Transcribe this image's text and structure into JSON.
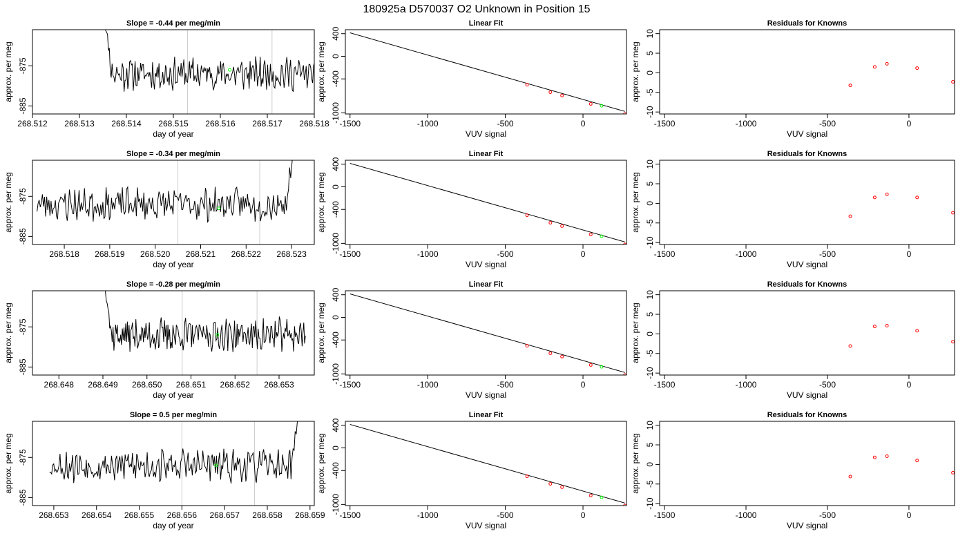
{
  "suptitle": "180925a     D570037   O2 Unknown in Position  15",
  "colors": {
    "series": "#000000",
    "unknown": "#00ff00",
    "known": "#ff0000",
    "marker_line": "#cccccc"
  },
  "chart_data": [
    {
      "type": "line",
      "panel": "timeseries",
      "row": 0,
      "title": "Slope =  -0.44  per meg/min",
      "xlabel": "day of year",
      "ylabel": "approx. per meg",
      "xlim": [
        268.512,
        268.518
      ],
      "ylim": [
        -887,
        -866
      ],
      "xticks": [
        268.512,
        268.513,
        268.514,
        268.515,
        268.516,
        268.517,
        268.518
      ],
      "xtick_labels": [
        "268.512",
        "268.513",
        "268.514",
        "268.515",
        "268.516",
        "268.517",
        "268.518"
      ],
      "yticks": [
        -875,
        -885
      ],
      "ytick_labels": [
        "-875",
        "-885"
      ],
      "vlines": [
        268.5153,
        268.5171
      ],
      "trace_start": 268.5135,
      "trace_end": 268.5182,
      "spike_start": -860,
      "seed": 11,
      "unknown_point": {
        "x": 268.5162,
        "y": -876
      }
    },
    {
      "type": "scatter",
      "panel": "fit",
      "row": 0,
      "title": "Linear Fit",
      "xlabel": "VUV signal",
      "ylabel": "approx. per meg",
      "xlim": [
        -1530,
        280
      ],
      "ylim": [
        -1020,
        470
      ],
      "xticks": [
        -1500,
        -1000,
        -500,
        0
      ],
      "xtick_labels": [
        "-1500",
        "-1000",
        "-500",
        "0"
      ],
      "yticks": [
        400,
        0,
        -400,
        -1000
      ],
      "ytick_labels": [
        "400",
        "0",
        "-400",
        "-1000"
      ],
      "line": {
        "x": [
          -1500,
          270
        ],
        "y": [
          415,
          -975
        ]
      },
      "knowns": {
        "x": [
          -360,
          -210,
          -135,
          50,
          270
        ],
        "y": [
          -502,
          -635,
          -694,
          -842,
          -1020
        ]
      },
      "unknown": {
        "x": 120,
        "y": -875
      }
    },
    {
      "type": "scatter",
      "panel": "residuals",
      "row": 0,
      "title": "Residuals for Knowns",
      "xlabel": "VUV signal",
      "ylabel": "approx. per meg",
      "xlim": [
        -1530,
        280
      ],
      "ylim": [
        -10.5,
        11
      ],
      "xticks": [
        -1500,
        -1000,
        -500,
        0
      ],
      "xtick_labels": [
        "-1500",
        "-1000",
        "-500",
        "0"
      ],
      "yticks": [
        10,
        5,
        0,
        -5,
        -10
      ],
      "ytick_labels": [
        "10",
        "5",
        "0",
        "-5",
        "-10"
      ],
      "points": {
        "x": [
          -360,
          -210,
          -135,
          50,
          270
        ],
        "y": [
          -3.2,
          1.5,
          2.3,
          1.2,
          -2.3
        ]
      }
    },
    {
      "type": "line",
      "panel": "timeseries",
      "row": 1,
      "title": "Slope =  -0.34  per meg/min",
      "xlabel": "day of year",
      "ylabel": "approx. per meg",
      "xlim": [
        268.5173,
        268.5235
      ],
      "ylim": [
        -887,
        -866
      ],
      "xticks": [
        268.518,
        268.519,
        268.52,
        268.521,
        268.522,
        268.523
      ],
      "xtick_labels": [
        "268.518",
        "268.519",
        "268.520",
        "268.521",
        "268.522",
        "268.523"
      ],
      "yticks": [
        -875,
        -885
      ],
      "ytick_labels": [
        "-875",
        "-885"
      ],
      "vlines": [
        268.5205,
        268.5223
      ],
      "trace_start": 268.5174,
      "trace_end": 268.5231,
      "spike_end": -860,
      "seed": 23,
      "unknown_point": {
        "x": 268.5214,
        "y": -878
      }
    },
    {
      "type": "scatter",
      "panel": "fit",
      "row": 1,
      "title": "Linear Fit",
      "xlabel": "VUV signal",
      "ylabel": "approx. per meg",
      "xlim": [
        -1530,
        280
      ],
      "ylim": [
        -1020,
        470
      ],
      "xticks": [
        -1500,
        -1000,
        -500,
        0
      ],
      "xtick_labels": [
        "-1500",
        "-1000",
        "-500",
        "0"
      ],
      "yticks": [
        400,
        0,
        -400,
        -1000
      ],
      "ytick_labels": [
        "400",
        "0",
        "-400",
        "-1000"
      ],
      "line": {
        "x": [
          -1500,
          270
        ],
        "y": [
          415,
          -975
        ]
      },
      "knowns": {
        "x": [
          -360,
          -210,
          -135,
          50,
          270
        ],
        "y": [
          -502,
          -635,
          -694,
          -842,
          -1020
        ]
      },
      "unknown": {
        "x": 120,
        "y": -875
      }
    },
    {
      "type": "scatter",
      "panel": "residuals",
      "row": 1,
      "title": "Residuals for Knowns",
      "xlabel": "VUV signal",
      "ylabel": "approx. per meg",
      "xlim": [
        -1530,
        280
      ],
      "ylim": [
        -10.5,
        11
      ],
      "xticks": [
        -1500,
        -1000,
        -500,
        0
      ],
      "xtick_labels": [
        "-1500",
        "-1000",
        "-500",
        "0"
      ],
      "yticks": [
        10,
        5,
        0,
        -5,
        -10
      ],
      "ytick_labels": [
        "10",
        "5",
        "0",
        "-5",
        "-10"
      ],
      "points": {
        "x": [
          -360,
          -210,
          -135,
          50,
          270
        ],
        "y": [
          -3.3,
          1.5,
          2.3,
          1.5,
          -2.4
        ]
      }
    },
    {
      "type": "line",
      "panel": "timeseries",
      "row": 2,
      "title": "Slope =  -0.28  per meg/min",
      "xlabel": "day of year",
      "ylabel": "approx. per meg",
      "xlim": [
        268.6474,
        268.6538
      ],
      "ylim": [
        -887,
        -866
      ],
      "xticks": [
        268.648,
        268.649,
        268.65,
        268.651,
        268.652,
        268.653
      ],
      "xtick_labels": [
        "268.648",
        "268.649",
        "268.650",
        "268.651",
        "268.652",
        "268.653"
      ],
      "yticks": [
        -875,
        -885
      ],
      "ytick_labels": [
        "-875",
        "-885"
      ],
      "vlines": [
        268.6508,
        268.6525
      ],
      "trace_start": 268.649,
      "trace_end": 268.6536,
      "spike_start": -860,
      "seed": 37,
      "unknown_point": {
        "x": 268.6516,
        "y": -877
      }
    },
    {
      "type": "scatter",
      "panel": "fit",
      "row": 2,
      "title": "Linear Fit",
      "xlabel": "VUV signal",
      "ylabel": "approx. per meg",
      "xlim": [
        -1530,
        280
      ],
      "ylim": [
        -1020,
        470
      ],
      "xticks": [
        -1500,
        -1000,
        -500,
        0
      ],
      "xtick_labels": [
        "-1500",
        "-1000",
        "-500",
        "0"
      ],
      "yticks": [
        400,
        0,
        -400,
        -1000
      ],
      "ytick_labels": [
        "400",
        "0",
        "-400",
        "-1000"
      ],
      "line": {
        "x": [
          -1500,
          270
        ],
        "y": [
          415,
          -975
        ]
      },
      "knowns": {
        "x": [
          -360,
          -210,
          -135,
          50,
          270
        ],
        "y": [
          -502,
          -635,
          -694,
          -842,
          -1020
        ]
      },
      "unknown": {
        "x": 120,
        "y": -875
      }
    },
    {
      "type": "scatter",
      "panel": "residuals",
      "row": 2,
      "title": "Residuals for Knowns",
      "xlabel": "VUV signal",
      "ylabel": "approx. per meg",
      "xlim": [
        -1530,
        280
      ],
      "ylim": [
        -10.5,
        11
      ],
      "xticks": [
        -1500,
        -1000,
        -500,
        0
      ],
      "xtick_labels": [
        "-1500",
        "-1000",
        "-500",
        "0"
      ],
      "yticks": [
        10,
        5,
        0,
        -5,
        -10
      ],
      "ytick_labels": [
        "10",
        "5",
        "0",
        "-5",
        "-10"
      ],
      "points": {
        "x": [
          -360,
          -210,
          -135,
          50,
          270
        ],
        "y": [
          -3.1,
          1.9,
          2.1,
          0.8,
          -2.0
        ]
      }
    },
    {
      "type": "line",
      "panel": "timeseries",
      "row": 3,
      "title": "Slope =  0.5  per meg/min",
      "xlabel": "day of year",
      "ylabel": "approx. per meg",
      "xlim": [
        268.6525,
        268.6591
      ],
      "ylim": [
        -887,
        -866
      ],
      "xticks": [
        268.653,
        268.654,
        268.655,
        268.656,
        268.657,
        268.658,
        268.659
      ],
      "xtick_labels": [
        "268.653",
        "268.654",
        "268.655",
        "268.656",
        "268.657",
        "268.658",
        "268.659"
      ],
      "yticks": [
        -875,
        -885
      ],
      "ytick_labels": [
        "-875",
        "-885"
      ],
      "vlines": [
        268.656,
        268.6577
      ],
      "trace_start": 268.6529,
      "trace_end": 268.6588,
      "spike_end": -860,
      "seed": 53,
      "unknown_point": {
        "x": 268.6568,
        "y": -877
      }
    },
    {
      "type": "scatter",
      "panel": "fit",
      "row": 3,
      "title": "Linear Fit",
      "xlabel": "VUV signal",
      "ylabel": "approx. per meg",
      "xlim": [
        -1530,
        280
      ],
      "ylim": [
        -1020,
        470
      ],
      "xticks": [
        -1500,
        -1000,
        -500,
        0
      ],
      "xtick_labels": [
        "-1500",
        "-1000",
        "-500",
        "0"
      ],
      "yticks": [
        400,
        0,
        -400,
        -1000
      ],
      "ytick_labels": [
        "400",
        "0",
        "-400",
        "-1000"
      ],
      "line": {
        "x": [
          -1500,
          270
        ],
        "y": [
          415,
          -975
        ]
      },
      "knowns": {
        "x": [
          -360,
          -210,
          -135,
          50,
          270
        ],
        "y": [
          -502,
          -635,
          -694,
          -842,
          -1020
        ]
      },
      "unknown": {
        "x": 120,
        "y": -875
      }
    },
    {
      "type": "scatter",
      "panel": "residuals",
      "row": 3,
      "title": "Residuals for Knowns",
      "xlabel": "VUV signal",
      "ylabel": "approx. per meg",
      "xlim": [
        -1530,
        280
      ],
      "ylim": [
        -10.5,
        11
      ],
      "xticks": [
        -1500,
        -1000,
        -500,
        0
      ],
      "xtick_labels": [
        "-1500",
        "-1000",
        "-500",
        "0"
      ],
      "yticks": [
        10,
        5,
        0,
        -5,
        -10
      ],
      "ytick_labels": [
        "10",
        "5",
        "0",
        "-5",
        "-10"
      ],
      "points": {
        "x": [
          -360,
          -210,
          -135,
          50,
          270
        ],
        "y": [
          -3.1,
          1.8,
          2.1,
          1.0,
          -2.1
        ]
      }
    }
  ]
}
